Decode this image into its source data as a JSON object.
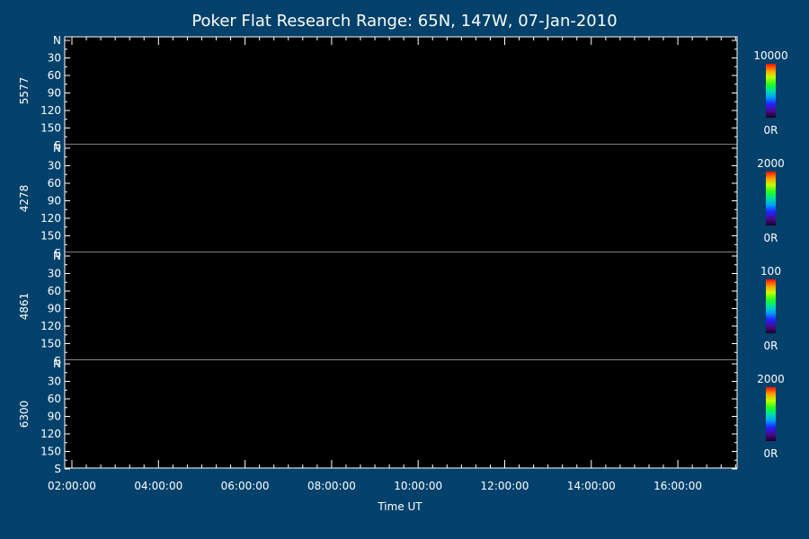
{
  "chart_data": {
    "type": "heatmap",
    "title": "Poker Flat Research Range: 65N, 147W, 07-Jan-2010",
    "xlabel": "Time UT",
    "x_ticks": [
      "02:00:00",
      "04:00:00",
      "06:00:00",
      "08:00:00",
      "10:00:00",
      "12:00:00",
      "14:00:00",
      "16:00:00"
    ],
    "y_ticks": [
      "N",
      "30",
      "60",
      "90",
      "120",
      "150",
      "S"
    ],
    "panels": [
      {
        "wavelength": "5577",
        "colorbar_max": "10000",
        "colorbar_min": "0R"
      },
      {
        "wavelength": "4278",
        "colorbar_max": "2000",
        "colorbar_min": "0R"
      },
      {
        "wavelength": "4861",
        "colorbar_max": "100",
        "colorbar_min": "0R"
      },
      {
        "wavelength": "6300",
        "colorbar_max": "2000",
        "colorbar_min": "0R"
      }
    ],
    "background_color": "#01416c",
    "panel_color": "#000000",
    "axis_color": "#ffffff"
  }
}
